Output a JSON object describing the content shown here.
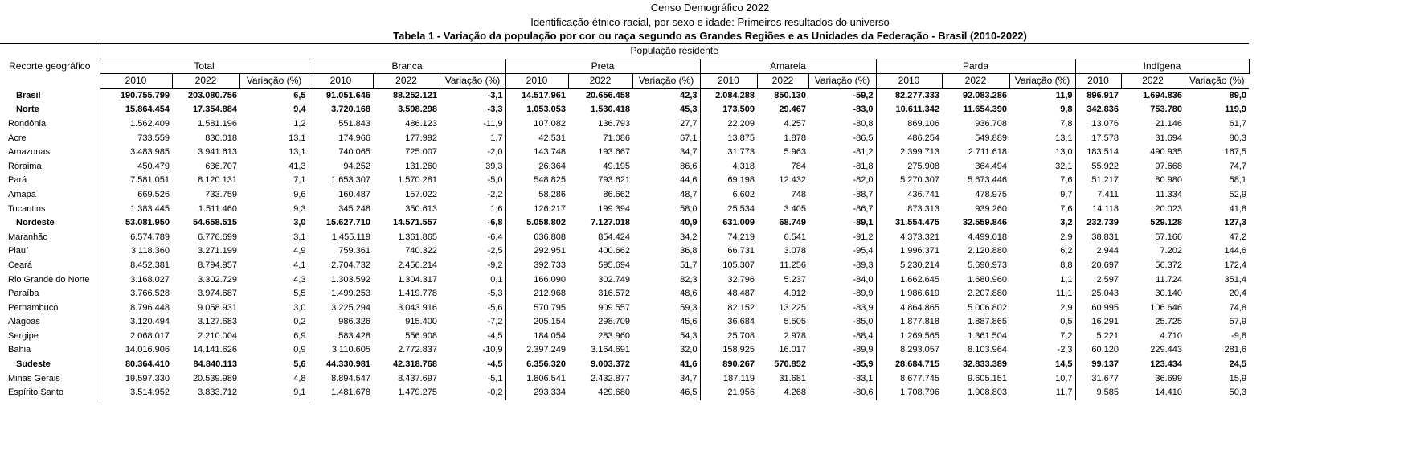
{
  "titles": {
    "line1": "Censo Demográfico 2022",
    "line2": "Identificação étnico-racial, por sexo e idade: Primeiros resultados do universo",
    "line3": "Tabela 1 - Variação da população por cor ou raça segundo as Grandes Regiões e as Unidades da Federação - Brasil (2010-2022)"
  },
  "header": {
    "geo": "Recorte geográfico",
    "pop": "População residente",
    "groups": [
      "Total",
      "Branca",
      "Preta",
      "Amarela",
      "Parda",
      "Indígena"
    ],
    "subcols": [
      "2010",
      "2022",
      "Variação (%)"
    ]
  },
  "rows": [
    {
      "name": "Brasil",
      "bold": true,
      "v": [
        "190.755.799",
        "203.080.756",
        "6,5",
        "91.051.646",
        "88.252.121",
        "-3,1",
        "14.517.961",
        "20.656.458",
        "42,3",
        "2.084.288",
        "850.130",
        "-59,2",
        "82.277.333",
        "92.083.286",
        "11,9",
        "896.917",
        "1.694.836",
        "89,0"
      ]
    },
    {
      "name": "Norte",
      "bold": true,
      "v": [
        "15.864.454",
        "17.354.884",
        "9,4",
        "3.720.168",
        "3.598.298",
        "-3,3",
        "1.053.053",
        "1.530.418",
        "45,3",
        "173.509",
        "29.467",
        "-83,0",
        "10.611.342",
        "11.654.390",
        "9,8",
        "342.836",
        "753.780",
        "119,9"
      ]
    },
    {
      "name": "Rondônia",
      "bold": false,
      "v": [
        "1.562.409",
        "1.581.196",
        "1,2",
        "551.843",
        "486.123",
        "-11,9",
        "107.082",
        "136.793",
        "27,7",
        "22.209",
        "4.257",
        "-80,8",
        "869.106",
        "936.708",
        "7,8",
        "13.076",
        "21.146",
        "61,7"
      ]
    },
    {
      "name": "Acre",
      "bold": false,
      "v": [
        "733.559",
        "830.018",
        "13,1",
        "174.966",
        "177.992",
        "1,7",
        "42.531",
        "71.086",
        "67,1",
        "13.875",
        "1.878",
        "-86,5",
        "486.254",
        "549.889",
        "13,1",
        "17.578",
        "31.694",
        "80,3"
      ]
    },
    {
      "name": "Amazonas",
      "bold": false,
      "v": [
        "3.483.985",
        "3.941.613",
        "13,1",
        "740.065",
        "725.007",
        "-2,0",
        "143.748",
        "193.667",
        "34,7",
        "31.773",
        "5.963",
        "-81,2",
        "2.399.713",
        "2.711.618",
        "13,0",
        "183.514",
        "490.935",
        "167,5"
      ]
    },
    {
      "name": "Roraima",
      "bold": false,
      "v": [
        "450.479",
        "636.707",
        "41,3",
        "94.252",
        "131.260",
        "39,3",
        "26.364",
        "49.195",
        "86,6",
        "4.318",
        "784",
        "-81,8",
        "275.908",
        "364.494",
        "32,1",
        "55.922",
        "97.668",
        "74,7"
      ]
    },
    {
      "name": "Pará",
      "bold": false,
      "v": [
        "7.581.051",
        "8.120.131",
        "7,1",
        "1.653.307",
        "1.570.281",
        "-5,0",
        "548.825",
        "793.621",
        "44,6",
        "69.198",
        "12.432",
        "-82,0",
        "5.270.307",
        "5.673.446",
        "7,6",
        "51.217",
        "80.980",
        "58,1"
      ]
    },
    {
      "name": "Amapá",
      "bold": false,
      "v": [
        "669.526",
        "733.759",
        "9,6",
        "160.487",
        "157.022",
        "-2,2",
        "58.286",
        "86.662",
        "48,7",
        "6.602",
        "748",
        "-88,7",
        "436.741",
        "478.975",
        "9,7",
        "7.411",
        "11.334",
        "52,9"
      ]
    },
    {
      "name": "Tocantins",
      "bold": false,
      "v": [
        "1.383.445",
        "1.511.460",
        "9,3",
        "345.248",
        "350.613",
        "1,6",
        "126.217",
        "199.394",
        "58,0",
        "25.534",
        "3.405",
        "-86,7",
        "873.313",
        "939.260",
        "7,6",
        "14.118",
        "20.023",
        "41,8"
      ]
    },
    {
      "name": "Nordeste",
      "bold": true,
      "v": [
        "53.081.950",
        "54.658.515",
        "3,0",
        "15.627.710",
        "14.571.557",
        "-6,8",
        "5.058.802",
        "7.127.018",
        "40,9",
        "631.009",
        "68.749",
        "-89,1",
        "31.554.475",
        "32.559.846",
        "3,2",
        "232.739",
        "529.128",
        "127,3"
      ]
    },
    {
      "name": "Maranhão",
      "bold": false,
      "v": [
        "6.574.789",
        "6.776.699",
        "3,1",
        "1.455.119",
        "1.361.865",
        "-6,4",
        "636.808",
        "854.424",
        "34,2",
        "74.219",
        "6.541",
        "-91,2",
        "4.373.321",
        "4.499.018",
        "2,9",
        "38.831",
        "57.166",
        "47,2"
      ]
    },
    {
      "name": "Piauí",
      "bold": false,
      "v": [
        "3.118.360",
        "3.271.199",
        "4,9",
        "759.361",
        "740.322",
        "-2,5",
        "292.951",
        "400.662",
        "36,8",
        "66.731",
        "3.078",
        "-95,4",
        "1.996.371",
        "2.120.880",
        "6,2",
        "2.944",
        "7.202",
        "144,6"
      ]
    },
    {
      "name": "Ceará",
      "bold": false,
      "v": [
        "8.452.381",
        "8.794.957",
        "4,1",
        "2.704.732",
        "2.456.214",
        "-9,2",
        "392.733",
        "595.694",
        "51,7",
        "105.307",
        "11.256",
        "-89,3",
        "5.230.214",
        "5.690.973",
        "8,8",
        "20.697",
        "56.372",
        "172,4"
      ]
    },
    {
      "name": "Rio Grande do Norte",
      "bold": false,
      "v": [
        "3.168.027",
        "3.302.729",
        "4,3",
        "1.303.592",
        "1.304.317",
        "0,1",
        "166.090",
        "302.749",
        "82,3",
        "32.796",
        "5.237",
        "-84,0",
        "1.662.645",
        "1.680.960",
        "1,1",
        "2.597",
        "11.724",
        "351,4"
      ]
    },
    {
      "name": "Paraíba",
      "bold": false,
      "v": [
        "3.766.528",
        "3.974.687",
        "5,5",
        "1.499.253",
        "1.419.778",
        "-5,3",
        "212.968",
        "316.572",
        "48,6",
        "48.487",
        "4.912",
        "-89,9",
        "1.986.619",
        "2.207.880",
        "11,1",
        "25.043",
        "30.140",
        "20,4"
      ]
    },
    {
      "name": "Pernambuco",
      "bold": false,
      "v": [
        "8.796.448",
        "9.058.931",
        "3,0",
        "3.225.294",
        "3.043.916",
        "-5,6",
        "570.795",
        "909.557",
        "59,3",
        "82.152",
        "13.225",
        "-83,9",
        "4.864.865",
        "5.006.802",
        "2,9",
        "60.995",
        "106.646",
        "74,8"
      ]
    },
    {
      "name": "Alagoas",
      "bold": false,
      "v": [
        "3.120.494",
        "3.127.683",
        "0,2",
        "986.326",
        "915.400",
        "-7,2",
        "205.154",
        "298.709",
        "45,6",
        "36.684",
        "5.505",
        "-85,0",
        "1.877.818",
        "1.887.865",
        "0,5",
        "16.291",
        "25.725",
        "57,9"
      ]
    },
    {
      "name": "Sergipe",
      "bold": false,
      "v": [
        "2.068.017",
        "2.210.004",
        "6,9",
        "583.428",
        "556.908",
        "-4,5",
        "184.054",
        "283.960",
        "54,3",
        "25.708",
        "2.978",
        "-88,4",
        "1.269.565",
        "1.361.504",
        "7,2",
        "5.221",
        "4.710",
        "-9,8"
      ]
    },
    {
      "name": "Bahia",
      "bold": false,
      "v": [
        "14.016.906",
        "14.141.626",
        "0,9",
        "3.110.605",
        "2.772.837",
        "-10,9",
        "2.397.249",
        "3.164.691",
        "32,0",
        "158.925",
        "16.017",
        "-89,9",
        "8.293.057",
        "8.103.964",
        "-2,3",
        "60.120",
        "229.443",
        "281,6"
      ]
    },
    {
      "name": "Sudeste",
      "bold": true,
      "v": [
        "80.364.410",
        "84.840.113",
        "5,6",
        "44.330.981",
        "42.318.768",
        "-4,5",
        "6.356.320",
        "9.003.372",
        "41,6",
        "890.267",
        "570.852",
        "-35,9",
        "28.684.715",
        "32.833.389",
        "14,5",
        "99.137",
        "123.434",
        "24,5"
      ]
    },
    {
      "name": "Minas Gerais",
      "bold": false,
      "v": [
        "19.597.330",
        "20.539.989",
        "4,8",
        "8.894.547",
        "8.437.697",
        "-5,1",
        "1.806.541",
        "2.432.877",
        "34,7",
        "187.119",
        "31.681",
        "-83,1",
        "8.677.745",
        "9.605.151",
        "10,7",
        "31.677",
        "36.699",
        "15,9"
      ]
    },
    {
      "name": "Espírito Santo",
      "bold": false,
      "v": [
        "3.514.952",
        "3.833.712",
        "9,1",
        "1.481.678",
        "1.479.275",
        "-0,2",
        "293.334",
        "429.680",
        "46,5",
        "21.956",
        "4.268",
        "-80,6",
        "1.708.796",
        "1.908.803",
        "11,7",
        "9.585",
        "14.410",
        "50,3"
      ]
    }
  ]
}
